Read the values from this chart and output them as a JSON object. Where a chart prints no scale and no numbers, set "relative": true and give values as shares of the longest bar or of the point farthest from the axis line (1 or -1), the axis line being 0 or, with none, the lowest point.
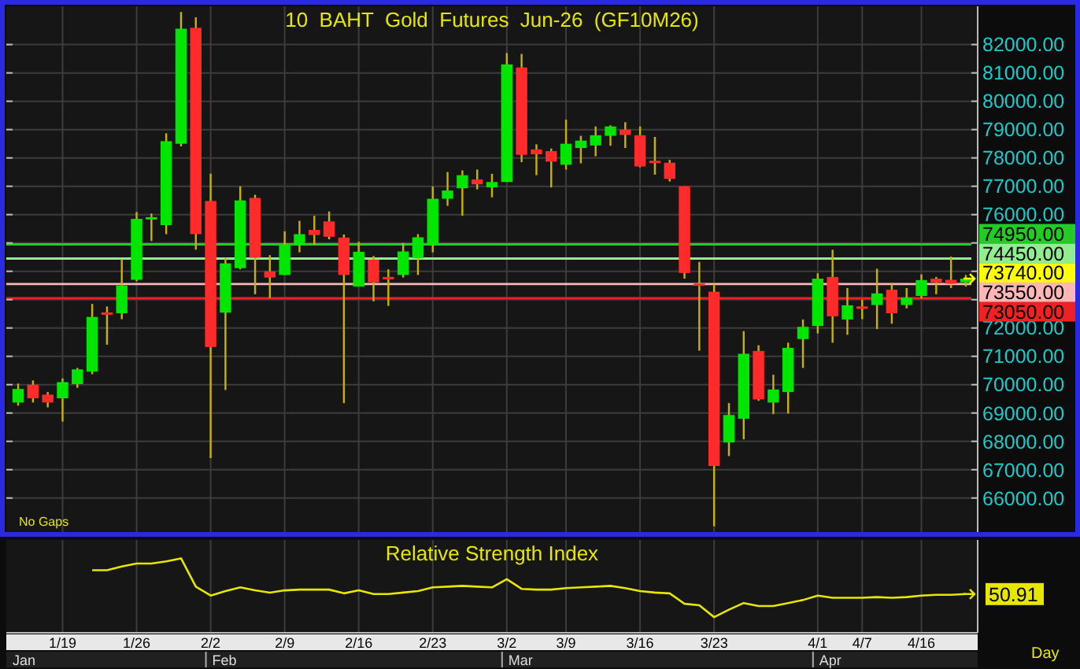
{
  "chart_data": [
    {
      "type": "candlestick",
      "title": "10  BAHT  Gold  Futures  Jun-26  (GF10M26)",
      "categories": [
        null,
        null,
        null,
        null,
        null,
        null,
        null,
        null,
        null,
        null,
        null,
        null,
        null,
        null,
        null,
        null,
        null,
        null,
        null,
        null,
        null,
        null,
        null,
        null,
        null,
        null,
        null,
        null,
        null,
        null,
        null,
        null,
        null,
        null,
        null,
        null,
        null,
        null,
        null,
        null,
        null,
        null,
        null,
        null,
        null,
        null,
        null,
        null,
        null,
        null,
        null,
        null,
        null,
        null,
        null,
        null,
        null,
        null,
        null,
        null,
        null,
        null,
        null,
        null,
        null
      ],
      "ohlc": [
        [
          69370,
          70040,
          69260,
          69850
        ],
        [
          70000,
          70150,
          69370,
          69520
        ],
        [
          69650,
          69740,
          69200,
          69370
        ],
        [
          69520,
          70220,
          68700,
          70090
        ],
        [
          70020,
          70590,
          69890,
          70540
        ],
        [
          70460,
          72850,
          70370,
          72390
        ],
        [
          72550,
          72760,
          71410,
          72540
        ],
        [
          72520,
          74430,
          72310,
          73500
        ],
        [
          73700,
          76090,
          73650,
          75850
        ],
        [
          75870,
          76040,
          75070,
          75910
        ],
        [
          75630,
          78870,
          75310,
          78590
        ],
        [
          78500,
          83150,
          78410,
          82560
        ],
        [
          82590,
          82960,
          74760,
          75310
        ],
        [
          76480,
          77440,
          67410,
          71330
        ],
        [
          72540,
          74480,
          69810,
          74280
        ],
        [
          74110,
          77000,
          74070,
          76500
        ],
        [
          76590,
          76700,
          73190,
          74480
        ],
        [
          74000,
          74570,
          73060,
          73780
        ],
        [
          73870,
          75410,
          73870,
          74930
        ],
        [
          74930,
          75780,
          74670,
          75310
        ],
        [
          75460,
          75960,
          74940,
          75280
        ],
        [
          75760,
          76110,
          75130,
          75220
        ],
        [
          75190,
          75300,
          69350,
          73870
        ],
        [
          73460,
          75040,
          73460,
          74690
        ],
        [
          74410,
          74540,
          72940,
          73610
        ],
        [
          73800,
          74070,
          72780,
          73760
        ],
        [
          73870,
          75000,
          73780,
          74700
        ],
        [
          74460,
          75310,
          73870,
          75200
        ],
        [
          74930,
          77000,
          74670,
          76560
        ],
        [
          76560,
          77500,
          76310,
          76850
        ],
        [
          76930,
          77560,
          75960,
          77390
        ],
        [
          77240,
          77590,
          76890,
          77070
        ],
        [
          76960,
          77440,
          76610,
          77150
        ],
        [
          77150,
          81700,
          77150,
          81300
        ],
        [
          81190,
          81670,
          77850,
          78110
        ],
        [
          78300,
          78480,
          77390,
          78130
        ],
        [
          78240,
          78330,
          76960,
          77870
        ],
        [
          77760,
          79350,
          77590,
          78500
        ],
        [
          78350,
          78780,
          77810,
          78610
        ],
        [
          78440,
          79110,
          78060,
          78800
        ],
        [
          78780,
          79150,
          78430,
          79110
        ],
        [
          79000,
          79260,
          78350,
          78810
        ],
        [
          78800,
          79110,
          77670,
          77700
        ],
        [
          77900,
          78740,
          77410,
          77870
        ],
        [
          77830,
          77930,
          77170,
          77260
        ],
        [
          77000,
          77000,
          73740,
          73940
        ],
        [
          73570,
          74330,
          71200,
          73540
        ],
        [
          73280,
          73560,
          65000,
          67130
        ],
        [
          67960,
          69350,
          67480,
          68930
        ],
        [
          68800,
          71890,
          68070,
          71090
        ],
        [
          71190,
          71390,
          69430,
          69480
        ],
        [
          69370,
          70350,
          68960,
          69830
        ],
        [
          69740,
          71480,
          68980,
          71300
        ],
        [
          71610,
          72300,
          70590,
          72040
        ],
        [
          72070,
          73930,
          71810,
          73740
        ],
        [
          73800,
          74760,
          71480,
          72410
        ],
        [
          72300,
          73410,
          71760,
          72800
        ],
        [
          72760,
          73000,
          72310,
          72740
        ],
        [
          72810,
          74090,
          71960,
          73220
        ],
        [
          73350,
          73590,
          72150,
          72520
        ],
        [
          72810,
          73410,
          72690,
          73070
        ],
        [
          73130,
          73890,
          73040,
          73690
        ],
        [
          73740,
          73800,
          73190,
          73610
        ],
        [
          73700,
          74520,
          73410,
          73560
        ],
        [
          73610,
          73870,
          73460,
          73740
        ]
      ],
      "colors": [
        "#00e600",
        "#ff2b2b",
        "#ff2b2b",
        "#00e600",
        "#00e600",
        "#00e600",
        "#ff2b2b",
        "#00e600",
        "#00e600",
        "#00e600",
        "#00e600",
        "#00e600",
        "#ff2b2b",
        "#ff2b2b",
        "#00e600",
        "#00e600",
        "#ff2b2b",
        "#ff2b2b",
        "#00e600",
        "#00e600",
        "#ff2b2b",
        "#ff2b2b",
        "#ff2b2b",
        "#00e600",
        "#ff2b2b",
        "#ff2b2b",
        "#00e600",
        "#00e600",
        "#00e600",
        "#00e600",
        "#00e600",
        "#ff2b2b",
        "#00e600",
        "#00e600",
        "#ff2b2b",
        "#ff2b2b",
        "#ff2b2b",
        "#00e600",
        "#00e600",
        "#00e600",
        "#00e600",
        "#ff2b2b",
        "#ff2b2b",
        "#ff2b2b",
        "#ff2b2b",
        "#ff2b2b",
        "#ff2b2b",
        "#ff2b2b",
        "#00e600",
        "#00e600",
        "#ff2b2b",
        "#00e600",
        "#00e600",
        "#00e600",
        "#00e600",
        "#ff2b2b",
        "#00e600",
        "#ff2b2b",
        "#00e600",
        "#ff2b2b",
        "#00e600",
        "#00e600",
        "#ff2b2b",
        "#ff2b2b",
        "#00e600"
      ],
      "ylim": [
        64800,
        83350
      ],
      "yticks": [
        {
          "value": 66000,
          "label": "66000.00"
        },
        {
          "value": 67000,
          "label": "67000.00"
        },
        {
          "value": 68000,
          "label": "68000.00"
        },
        {
          "value": 69000,
          "label": "69000.00"
        },
        {
          "value": 70000,
          "label": "70000.00"
        },
        {
          "value": 71000,
          "label": "71000.00"
        },
        {
          "value": 72000,
          "label": "72000.00"
        },
        {
          "value": 73000,
          "label": null
        },
        {
          "value": 74000,
          "label": null
        },
        {
          "value": 75000,
          "label": null
        },
        {
          "value": 76000,
          "label": "76000.00"
        },
        {
          "value": 77000,
          "label": "77000.00"
        },
        {
          "value": 78000,
          "label": "78000.00"
        },
        {
          "value": 79000,
          "label": "79000.00"
        },
        {
          "value": 80000,
          "label": "80000.00"
        },
        {
          "value": 81000,
          "label": "81000.00"
        },
        {
          "value": 82000,
          "label": "82000.00"
        }
      ],
      "grid": true,
      "tick_labels": "y",
      "ref_lines": [
        {
          "axis": "y",
          "value": 74950,
          "label": "74950.00",
          "color": "#22cc22"
        },
        {
          "axis": "y",
          "value": 74450,
          "label": "74450.00",
          "color": "#90ee90"
        },
        {
          "axis": "y",
          "value": 73550,
          "label": "73550.00",
          "color": "#ffb6b6"
        },
        {
          "axis": "y",
          "value": 73050,
          "label": "73050.00",
          "color": "#ee2222"
        }
      ],
      "annotations": [
        "No Gaps",
        "73740.00"
      ]
    },
    {
      "type": "line",
      "relative": true,
      "title": "Relative Strength Index",
      "categories": [
        null,
        null,
        null,
        "1/19",
        null,
        null,
        null,
        null,
        "1/26",
        null,
        null,
        null,
        null,
        "2/2",
        null,
        null,
        null,
        null,
        "2/9",
        null,
        null,
        null,
        null,
        "2/16",
        null,
        null,
        null,
        null,
        "2/23",
        null,
        null,
        null,
        null,
        "3/2",
        null,
        null,
        null,
        "3/9",
        null,
        null,
        null,
        null,
        "3/16",
        null,
        null,
        null,
        null,
        "3/23",
        null,
        null,
        null,
        null,
        null,
        null,
        "4/1",
        null,
        null,
        "4/7",
        null,
        null,
        null,
        "4/16",
        null,
        null,
        null
      ],
      "series": [
        {
          "color": "#e6e600",
          "values": [
            null,
            null,
            null,
            null,
            null,
            0.84,
            0.84,
            0.89,
            0.93,
            0.93,
            0.96,
            1,
            0.62,
            0.5,
            0.56,
            0.61,
            0.57,
            0.54,
            0.57,
            0.58,
            0.58,
            0.58,
            0.53,
            0.57,
            0.52,
            0.52,
            0.54,
            0.56,
            0.61,
            0.62,
            0.63,
            0.62,
            0.61,
            0.72,
            0.59,
            0.58,
            0.58,
            0.6,
            0.61,
            0.62,
            0.63,
            0.6,
            0.56,
            0.54,
            0.53,
            0.39,
            0.37,
            0.21,
            0.31,
            0.4,
            0.36,
            0.36,
            0.4,
            0.44,
            0.5,
            0.47,
            0.47,
            0.47,
            0.48,
            0.47,
            0.48,
            0.5,
            0.51,
            0.51,
            0.52
          ]
        }
      ],
      "grid": "x",
      "tick_labels": "x",
      "annotations": [
        "50.91",
        "Jan",
        "Feb",
        "Mar",
        "Apr",
        "Day"
      ]
    }
  ]
}
